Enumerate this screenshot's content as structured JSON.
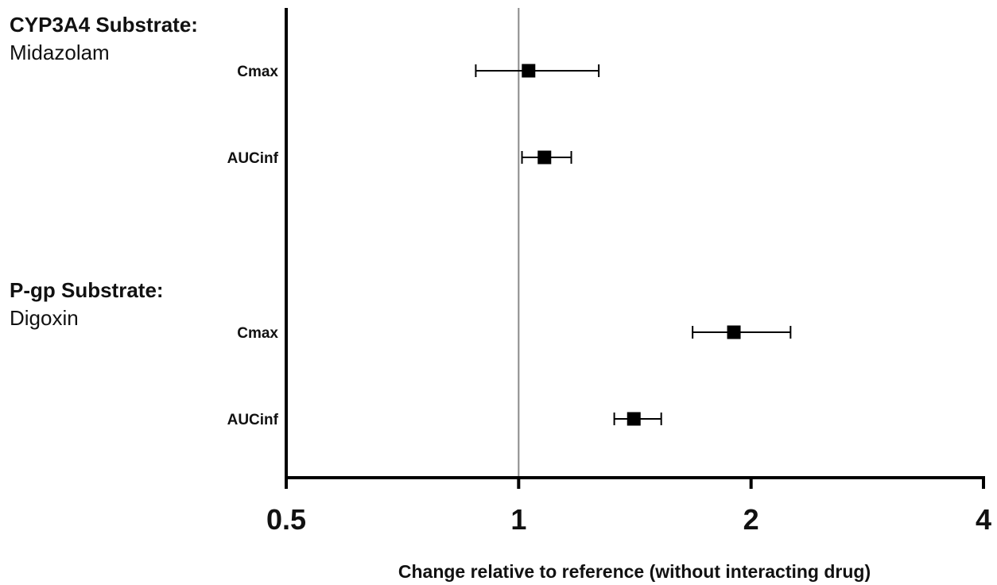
{
  "chart_data": {
    "type": "scatter",
    "subtype": "forest-plot",
    "xscale": "log2",
    "xlim": [
      0.5,
      4
    ],
    "xticks": [
      0.5,
      1,
      2,
      4
    ],
    "xtick_labels": [
      "0.5",
      "1",
      "2",
      "4"
    ],
    "reference_line": 1,
    "xlabel": "Change relative to reference (without interacting drug)",
    "grid": false,
    "groups": [
      {
        "title": "CYP3A4 Substrate:",
        "subtitle": "Midazolam",
        "rows": [
          {
            "label": "Cmax",
            "estimate": 1.03,
            "ci": [
              0.88,
              1.27
            ]
          },
          {
            "label": "AUCinf",
            "estimate": 1.08,
            "ci": [
              1.01,
              1.17
            ]
          }
        ]
      },
      {
        "title": "P-gp Substrate:",
        "subtitle": "Digoxin",
        "rows": [
          {
            "label": "Cmax",
            "estimate": 1.9,
            "ci": [
              1.68,
              2.25
            ]
          },
          {
            "label": "AUCinf",
            "estimate": 1.41,
            "ci": [
              1.33,
              1.53
            ]
          }
        ]
      }
    ],
    "colors": {
      "marker": "#000000",
      "axis": "#000000",
      "reference": "#8a8a8a"
    }
  }
}
